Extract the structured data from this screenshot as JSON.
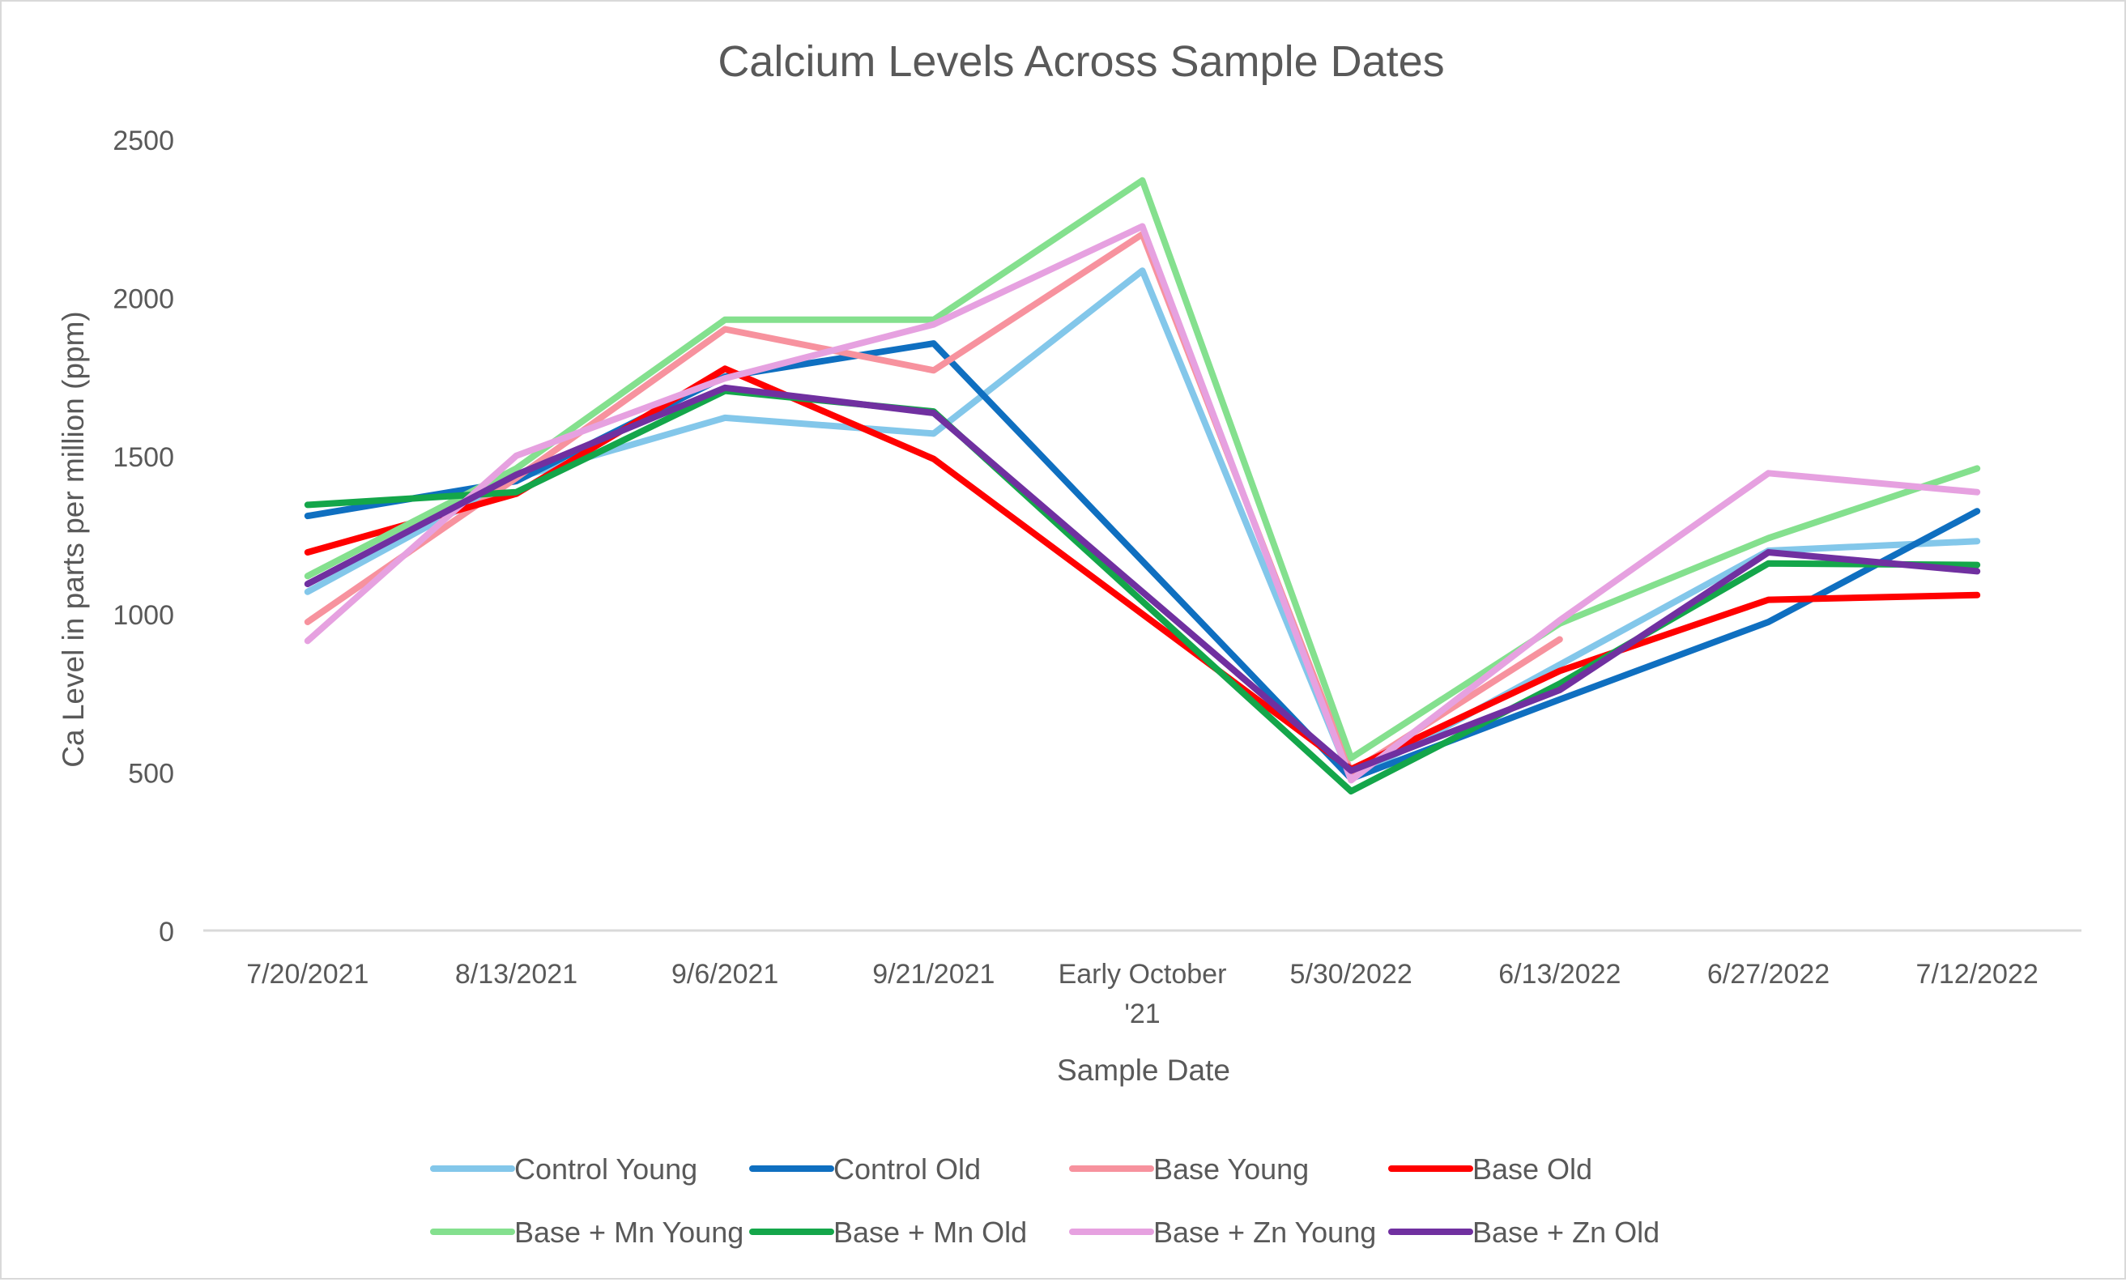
{
  "chart_data": {
    "type": "line",
    "title": "Calcium Levels Across Sample Dates",
    "xlabel": "Sample Date",
    "ylabel": "Ca Level in parts per million (ppm)",
    "ylim": [
      0,
      2500
    ],
    "yticks": [
      "0",
      "500",
      "1000",
      "1500",
      "2000",
      "2500"
    ],
    "grid": false,
    "legend_position": "bottom",
    "categories": [
      "7/20/2021",
      "8/13/2021",
      "9/6/2021",
      "9/21/2021",
      "Early October '21",
      "5/30/2022",
      "6/13/2022",
      "6/27/2022",
      "7/12/2022"
    ],
    "series": [
      {
        "name": "Control Young",
        "color": "#83c7ea",
        "values": [
          1070,
          1430,
          1620,
          1570,
          2085,
          480,
          840,
          1200,
          1230
        ]
      },
      {
        "name": "Control Old",
        "color": "#0f6fc0",
        "values": [
          1310,
          1420,
          1750,
          1855,
          null,
          480,
          730,
          975,
          1325
        ]
      },
      {
        "name": "Base Young",
        "color": "#f7929e",
        "values": [
          975,
          1430,
          1900,
          1770,
          2200,
          500,
          920,
          null,
          null
        ]
      },
      {
        "name": "Base Old",
        "color": "#ff0000",
        "values": [
          1195,
          1380,
          1775,
          1490,
          null,
          510,
          820,
          1045,
          1060
        ]
      },
      {
        "name": "Base + Mn Young",
        "color": "#84e08e",
        "values": [
          1120,
          1460,
          1930,
          1930,
          2370,
          545,
          970,
          1240,
          1460
        ]
      },
      {
        "name": "Base + Mn Old",
        "color": "#14a64a",
        "values": [
          1345,
          1385,
          1705,
          1640,
          null,
          440,
          780,
          1160,
          1155
        ]
      },
      {
        "name": "Base + Zn Young",
        "color": "#e6a1e0",
        "values": [
          915,
          1500,
          1745,
          1915,
          2225,
          475,
          980,
          1445,
          1385
        ]
      },
      {
        "name": "Base + Zn Old",
        "color": "#7030a0",
        "values": [
          1095,
          1440,
          1715,
          1635,
          null,
          505,
          760,
          1195,
          1135
        ]
      }
    ]
  }
}
